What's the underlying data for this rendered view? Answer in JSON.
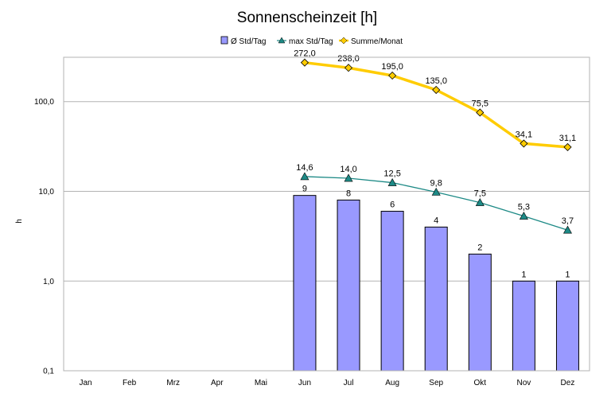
{
  "chart_data": {
    "type": "bar",
    "title": "Sonnenscheinzeit [h]",
    "ylabel": "h",
    "xlabel": "",
    "yscale": "log",
    "ylim": [
      0.1,
      300
    ],
    "y_ticks": [
      0.1,
      1,
      10,
      100
    ],
    "y_tick_labels": [
      "0,1",
      "1,0",
      "10,0",
      "100,0"
    ],
    "grid": true,
    "legend": "top",
    "categories": [
      "Jan",
      "Feb",
      "Mrz",
      "Apr",
      "Mai",
      "Jun",
      "Jul",
      "Aug",
      "Sep",
      "Okt",
      "Nov",
      "Dez"
    ],
    "series": [
      {
        "name": "Ø  Std/Tag",
        "type": "bar",
        "color": "#9999ff",
        "values": [
          null,
          null,
          null,
          null,
          null,
          9,
          8,
          6,
          4,
          2,
          1,
          1
        ],
        "labels": [
          null,
          null,
          null,
          null,
          null,
          "9",
          "8",
          "6",
          "4",
          "2",
          "1",
          "1"
        ]
      },
      {
        "name": "max Std/Tag",
        "type": "line",
        "marker": "triangle",
        "color": "#1d8a86",
        "values": [
          null,
          null,
          null,
          null,
          null,
          14.6,
          14.0,
          12.5,
          9.8,
          7.5,
          5.3,
          3.7
        ],
        "labels": [
          null,
          null,
          null,
          null,
          null,
          "14,6",
          "14,0",
          "12,5",
          "9,8",
          "7,5",
          "5,3",
          "3,7"
        ]
      },
      {
        "name": "Summe/Monat",
        "type": "line",
        "marker": "diamond",
        "color": "#ffcc00",
        "values": [
          null,
          null,
          null,
          null,
          null,
          272.0,
          238.0,
          195.0,
          135.0,
          75.5,
          34.1,
          31.1
        ],
        "labels": [
          null,
          null,
          null,
          null,
          null,
          "272,0",
          "238,0",
          "195,0",
          "135,0",
          "75,5",
          "34,1",
          "31,1"
        ]
      }
    ]
  }
}
